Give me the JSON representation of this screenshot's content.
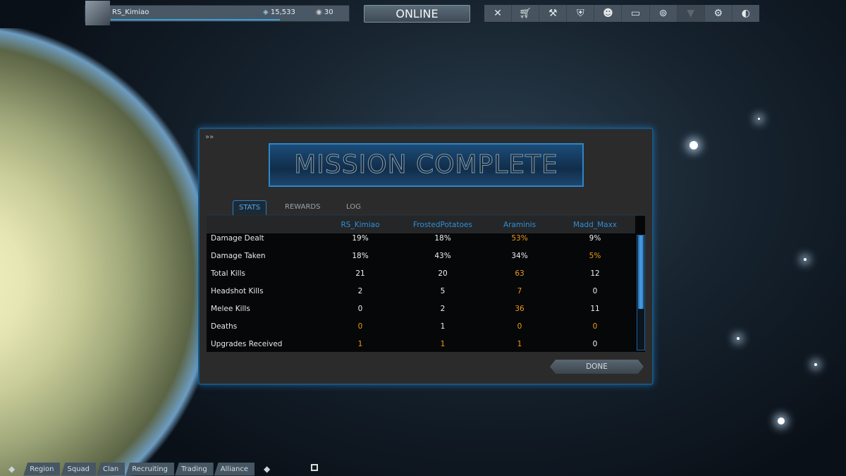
{
  "player": {
    "name": "RS_Kimiao",
    "platinum": "15,533",
    "credits": "30",
    "xp_progress": 0.64
  },
  "status": "ONLINE",
  "nav_icons": [
    "arsenal-icon",
    "market-icon",
    "foundry-icon",
    "clan-shield-icon",
    "friends-icon",
    "dojo-icon",
    "codex-icon",
    "unavailable-icon",
    "settings-icon",
    "logout-icon"
  ],
  "dialog": {
    "title": "MISSION COMPLETE",
    "tabs": [
      "STATS",
      "REWARDS",
      "LOG"
    ],
    "active_tab": "STATS",
    "players": [
      "RS_Kimiao",
      "FrostedPotatoes",
      "Araminis",
      "Madd_Maxx"
    ],
    "rows": [
      {
        "label": "Damage Dealt",
        "values": [
          "19%",
          "18%",
          "53%",
          "9%"
        ],
        "highlight": [
          false,
          false,
          true,
          false
        ]
      },
      {
        "label": "Damage Taken",
        "values": [
          "18%",
          "43%",
          "34%",
          "5%"
        ],
        "highlight": [
          false,
          false,
          false,
          true
        ]
      },
      {
        "label": "Total Kills",
        "values": [
          "21",
          "20",
          "63",
          "12"
        ],
        "highlight": [
          false,
          false,
          true,
          false
        ]
      },
      {
        "label": "Headshot Kills",
        "values": [
          "2",
          "5",
          "7",
          "0"
        ],
        "highlight": [
          false,
          false,
          true,
          false
        ]
      },
      {
        "label": "Melee Kills",
        "values": [
          "0",
          "2",
          "36",
          "11"
        ],
        "highlight": [
          false,
          false,
          true,
          false
        ]
      },
      {
        "label": "Deaths",
        "values": [
          "0",
          "1",
          "0",
          "0"
        ],
        "highlight": [
          true,
          false,
          true,
          true
        ]
      },
      {
        "label": "Upgrades Received",
        "values": [
          "1",
          "1",
          "1",
          "0"
        ],
        "highlight": [
          true,
          true,
          true,
          false
        ]
      }
    ],
    "done_label": "DONE"
  },
  "chat_tabs": [
    "Region",
    "Squad",
    "Clan",
    "Recruiting",
    "Trading",
    "Alliance"
  ],
  "colors": {
    "accent": "#2f8fd8",
    "highlight": "#f09a17"
  }
}
